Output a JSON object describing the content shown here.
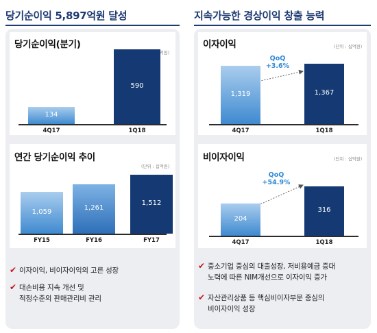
{
  "left": {
    "header": "당기순이익 5,897억원 달성",
    "quarterly": {
      "title": "당기순이익(분기)",
      "unit": "(단위 : 십억원)"
    },
    "annual": {
      "title": "연간 당기순이익 추이",
      "unit": "(단위 : 십억원)"
    },
    "bullets": [
      {
        "lines": [
          "이자이익, 비이자이익의 고른 성장"
        ]
      },
      {
        "lines": [
          "대손비용 지속 개선 및",
          "적정수준의 판매관리비 관리"
        ]
      }
    ]
  },
  "right": {
    "header": "지속가능한 경상이익 창출 능력",
    "interest": {
      "title": "이자이익",
      "unit": "(단위 : 십억원)",
      "growth_label": "QoQ",
      "growth_value": "+3.6%"
    },
    "noninterest": {
      "title": "비이자이익",
      "unit": "(단위 : 십억원)",
      "growth_label": "QoQ",
      "growth_value": "+54.9%"
    },
    "bullets": [
      {
        "lines": [
          "중소기업 중심의 대출성장, 저비용예금 증대",
          "노력에 따른 NIM개선으로 이자이익 증가"
        ]
      },
      {
        "lines": [
          "자산관리상품 등 핵심비이자부문 중심의",
          "비이자이익 성장"
        ]
      }
    ]
  },
  "colors": {
    "navy": "#1f3a73",
    "light_bar_top": "#a9cdee",
    "light_bar_bottom": "#3f8ad0",
    "dark_bar": "#153a73",
    "mid_bar_top": "#7db2e4",
    "mid_bar_bottom": "#2e6fb8",
    "check": "#c4181c",
    "qoq": "#2d89d8"
  },
  "chart_data": [
    {
      "type": "bar",
      "title": "당기순이익(분기)",
      "categories": [
        "4Q17",
        "1Q18"
      ],
      "values": [
        134,
        590
      ],
      "ylim": [
        0,
        620
      ],
      "grid": false,
      "legend": "none"
    },
    {
      "type": "bar",
      "title": "연간 당기순이익 추이",
      "categories": [
        "FY15",
        "FY16",
        "FY17"
      ],
      "values": [
        1059,
        1261,
        1512
      ],
      "ylim": [
        0,
        1540
      ],
      "grid": false,
      "legend": "none"
    },
    {
      "type": "bar",
      "title": "이자이익",
      "categories": [
        "4Q17",
        "1Q18"
      ],
      "values": [
        1319,
        1367
      ],
      "ylim": [
        0,
        1800
      ],
      "grid": false,
      "legend": "none"
    },
    {
      "type": "bar",
      "title": "비이자이익",
      "categories": [
        "4Q17",
        "1Q18"
      ],
      "values": [
        204,
        316
      ],
      "ylim": [
        0,
        385
      ],
      "grid": false,
      "legend": "none"
    }
  ]
}
